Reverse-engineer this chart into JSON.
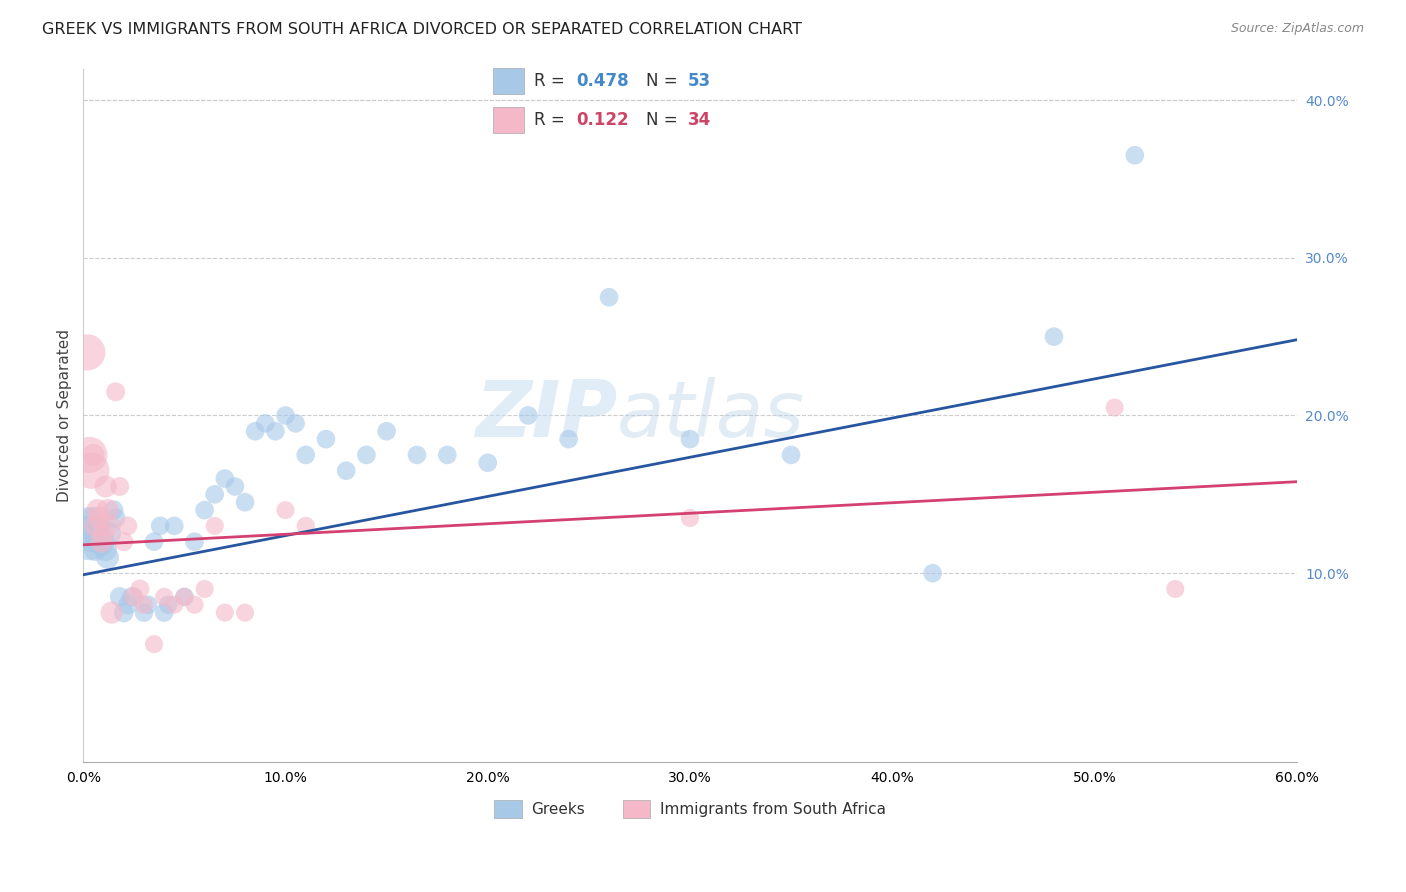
{
  "title": "GREEK VS IMMIGRANTS FROM SOUTH AFRICA DIVORCED OR SEPARATED CORRELATION CHART",
  "source": "Source: ZipAtlas.com",
  "ylabel": "Divorced or Separated",
  "watermark_zip": "ZIP",
  "watermark_atlas": "atlas",
  "legend_blue_r_val": "0.478",
  "legend_blue_n_val": "53",
  "legend_pink_r_val": "0.122",
  "legend_pink_n_val": "34",
  "legend_label_blue": "Greeks",
  "legend_label_pink": "Immigrants from South Africa",
  "xlim": [
    0.0,
    0.6
  ],
  "ylim": [
    -0.02,
    0.42
  ],
  "yplot_min": 0.0,
  "xticks": [
    0.0,
    0.1,
    0.2,
    0.3,
    0.4,
    0.5,
    0.6
  ],
  "yticks_right": [
    0.1,
    0.2,
    0.3,
    0.4
  ],
  "blue_color": "#a8c8e8",
  "pink_color": "#f4b8c8",
  "blue_line_color": "#2855a0",
  "pink_line_color": "#d44070",
  "blue_scatter": [
    [
      0.002,
      0.13
    ],
    [
      0.003,
      0.12
    ],
    [
      0.004,
      0.125
    ],
    [
      0.005,
      0.135
    ],
    [
      0.006,
      0.115
    ],
    [
      0.007,
      0.12
    ],
    [
      0.008,
      0.13
    ],
    [
      0.009,
      0.118
    ],
    [
      0.01,
      0.12
    ],
    [
      0.011,
      0.115
    ],
    [
      0.012,
      0.11
    ],
    [
      0.013,
      0.125
    ],
    [
      0.015,
      0.14
    ],
    [
      0.016,
      0.135
    ],
    [
      0.018,
      0.085
    ],
    [
      0.02,
      0.075
    ],
    [
      0.022,
      0.08
    ],
    [
      0.024,
      0.085
    ],
    [
      0.03,
      0.075
    ],
    [
      0.032,
      0.08
    ],
    [
      0.035,
      0.12
    ],
    [
      0.038,
      0.13
    ],
    [
      0.04,
      0.075
    ],
    [
      0.042,
      0.08
    ],
    [
      0.045,
      0.13
    ],
    [
      0.05,
      0.085
    ],
    [
      0.055,
      0.12
    ],
    [
      0.06,
      0.14
    ],
    [
      0.065,
      0.15
    ],
    [
      0.07,
      0.16
    ],
    [
      0.075,
      0.155
    ],
    [
      0.08,
      0.145
    ],
    [
      0.085,
      0.19
    ],
    [
      0.09,
      0.195
    ],
    [
      0.095,
      0.19
    ],
    [
      0.1,
      0.2
    ],
    [
      0.105,
      0.195
    ],
    [
      0.11,
      0.175
    ],
    [
      0.12,
      0.185
    ],
    [
      0.13,
      0.165
    ],
    [
      0.14,
      0.175
    ],
    [
      0.15,
      0.19
    ],
    [
      0.165,
      0.175
    ],
    [
      0.18,
      0.175
    ],
    [
      0.2,
      0.17
    ],
    [
      0.22,
      0.2
    ],
    [
      0.24,
      0.185
    ],
    [
      0.26,
      0.275
    ],
    [
      0.3,
      0.185
    ],
    [
      0.35,
      0.175
    ],
    [
      0.42,
      0.1
    ],
    [
      0.48,
      0.25
    ],
    [
      0.52,
      0.365
    ]
  ],
  "pink_scatter": [
    [
      0.002,
      0.24
    ],
    [
      0.003,
      0.175
    ],
    [
      0.004,
      0.165
    ],
    [
      0.005,
      0.175
    ],
    [
      0.006,
      0.13
    ],
    [
      0.007,
      0.14
    ],
    [
      0.008,
      0.135
    ],
    [
      0.009,
      0.12
    ],
    [
      0.01,
      0.125
    ],
    [
      0.011,
      0.155
    ],
    [
      0.012,
      0.14
    ],
    [
      0.013,
      0.13
    ],
    [
      0.014,
      0.075
    ],
    [
      0.016,
      0.215
    ],
    [
      0.018,
      0.155
    ],
    [
      0.02,
      0.12
    ],
    [
      0.022,
      0.13
    ],
    [
      0.025,
      0.085
    ],
    [
      0.028,
      0.09
    ],
    [
      0.03,
      0.08
    ],
    [
      0.035,
      0.055
    ],
    [
      0.04,
      0.085
    ],
    [
      0.045,
      0.08
    ],
    [
      0.05,
      0.085
    ],
    [
      0.055,
      0.08
    ],
    [
      0.06,
      0.09
    ],
    [
      0.065,
      0.13
    ],
    [
      0.07,
      0.075
    ],
    [
      0.08,
      0.075
    ],
    [
      0.1,
      0.14
    ],
    [
      0.11,
      0.13
    ],
    [
      0.3,
      0.135
    ],
    [
      0.51,
      0.205
    ],
    [
      0.54,
      0.09
    ]
  ],
  "blue_line_x0": 0.0,
  "blue_line_y0": 0.099,
  "blue_line_x1": 0.6,
  "blue_line_y1": 0.248,
  "pink_line_x0": 0.0,
  "pink_line_y0": 0.118,
  "pink_line_x1": 0.6,
  "pink_line_y1": 0.158,
  "background_color": "#ffffff",
  "grid_color": "#cccccc",
  "title_fontsize": 11.5,
  "axis_fontsize": 11,
  "tick_fontsize": 10,
  "source_fontsize": 9,
  "legend_fontsize": 12
}
